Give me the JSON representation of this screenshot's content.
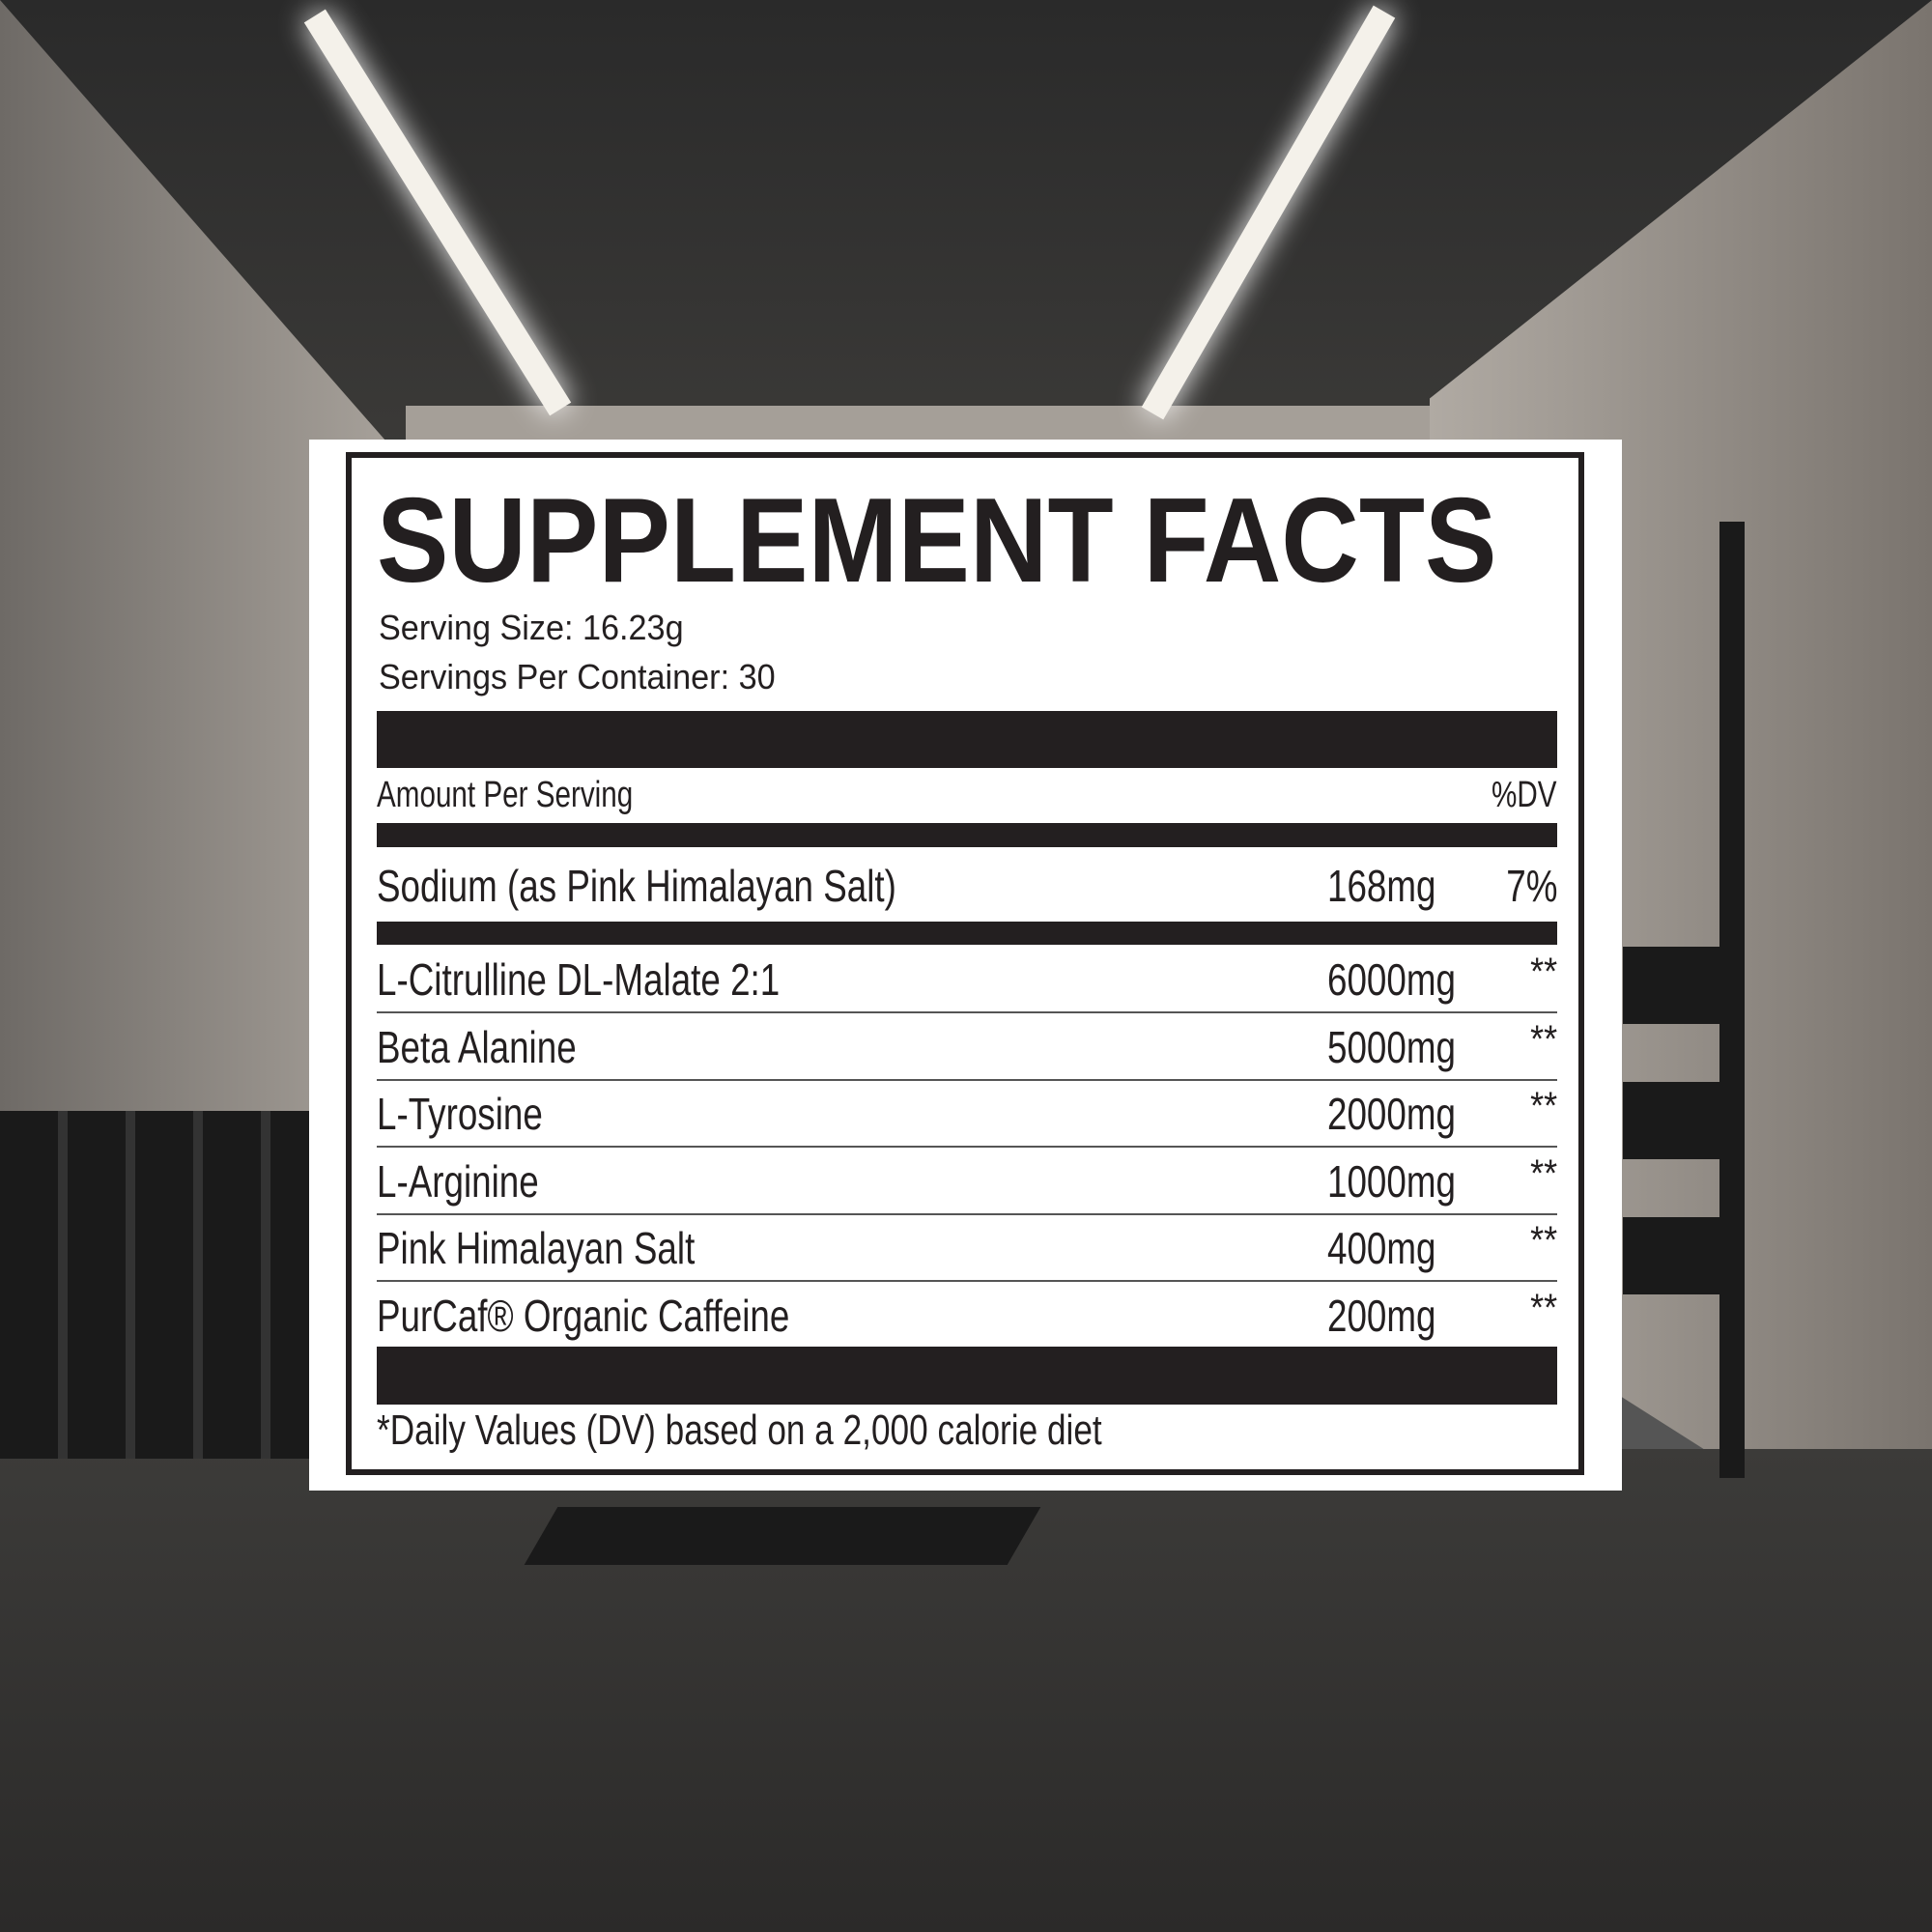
{
  "label": {
    "title": "SUPPLEMENT FACTS",
    "serving_size": "Serving Size: 16.23g",
    "servings_per_container": "Servings Per Container: 30",
    "amount_header": "Amount Per Serving",
    "dv_header": "%DV",
    "sodium": {
      "name": "Sodium (as Pink Himalayan Salt)",
      "amount": "168mg",
      "dv": "7%"
    },
    "ingredients": [
      {
        "name": "L-Citrulline DL-Malate 2:1",
        "amount": "6000mg",
        "dv": "**"
      },
      {
        "name": "Beta Alanine",
        "amount": "5000mg",
        "dv": "**"
      },
      {
        "name": "L-Tyrosine",
        "amount": "2000mg",
        "dv": "**"
      },
      {
        "name": "L-Arginine",
        "amount": "1000mg",
        "dv": "**"
      },
      {
        "name": "Pink Himalayan Salt",
        "amount": "400mg",
        "dv": "**"
      },
      {
        "name": "PurCaf® Organic Caffeine",
        "amount": "200mg",
        "dv": "**"
      }
    ],
    "footnote": "*Daily Values (DV) based on a 2,000 calorie diet"
  }
}
